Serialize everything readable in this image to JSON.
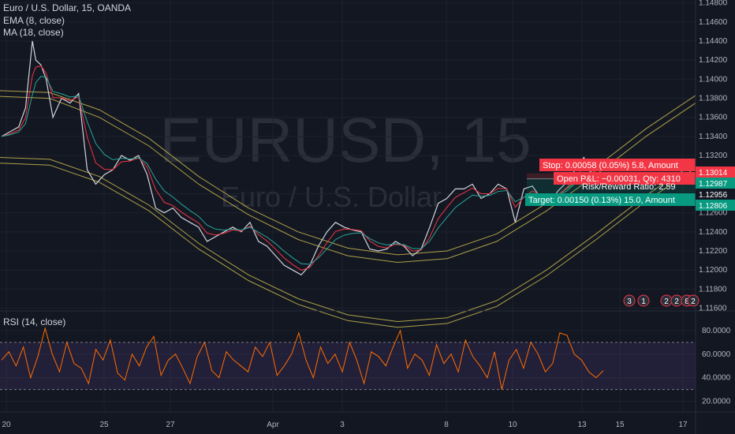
{
  "legend": {
    "symbol": "Euro / U.S. Dollar, 15, OANDA",
    "ema": "EMA (8, close)",
    "ma": "MA (18, close)",
    "rsi": "RSI (14, close)"
  },
  "watermark": {
    "symbol": "EURUSD, 15",
    "name": "Euro / U.S. Dollar"
  },
  "position": {
    "stop_text": "Stop: 0.00058 (0.05%) 5.8, Amount",
    "pnl_text": "Open P&L: −0.00031, Qty: 4310",
    "rr_text": "Risk/Reward Ratio: 2.59",
    "target_text": "Target: 0.00150 (0.13%) 15.0, Amount"
  },
  "price_tags": {
    "stop": "1.13014",
    "current": "1.12987",
    "entry": "1.12956",
    "target": "1.12806"
  },
  "events": [
    "3",
    "1",
    "2",
    "2",
    "8",
    "2"
  ],
  "colors": {
    "bg": "#131722",
    "price": "#d1d4dc",
    "ema": "#f23645",
    "ma": "#26a69a",
    "band": "#c9b94d",
    "rsi": "#ff6d00",
    "stop": "#f23645",
    "target": "#089981"
  },
  "chart_data": [
    {
      "type": "line",
      "title": "Euro / U.S. Dollar, 15, OANDA",
      "x_ticks": [
        "20",
        "25",
        "27",
        "Apr",
        "3",
        "8",
        "10",
        "13",
        "15",
        "17"
      ],
      "y_ticks": [
        "1.14800",
        "1.14600",
        "1.14400",
        "1.14200",
        "1.14000",
        "1.13800",
        "1.13600",
        "1.13400",
        "1.13200",
        "1.12800",
        "1.12600",
        "1.12400",
        "1.12200",
        "1.12000",
        "1.11800",
        "1.11600"
      ],
      "ylim": [
        1.1158,
        1.1483
      ],
      "series": [
        {
          "name": "Euro / U.S. Dollar",
          "x": [
            0,
            0.5,
            1,
            1.4,
            1.8,
            2,
            2.3,
            2.6,
            3,
            3.5,
            4,
            4.5,
            5,
            5.5,
            6,
            6.5,
            7,
            7.5,
            8,
            8.5,
            9,
            9.5,
            10,
            10.5,
            11,
            11.5,
            12,
            12.5,
            13,
            13.5,
            14,
            14.5,
            15,
            15.5,
            16,
            16.5,
            17,
            17.5,
            18,
            18.5,
            19,
            19.5,
            20,
            20.5,
            21,
            21.5,
            22,
            22.5,
            23,
            23.5,
            24,
            24.5,
            25,
            25.5,
            26,
            26.5,
            27,
            27.5,
            28,
            28.5,
            29,
            29.5,
            30,
            30.5,
            31,
            31.5,
            32,
            32.5,
            33,
            33.5,
            34,
            34.5,
            35
          ],
          "values": [
            1.134,
            1.1345,
            1.135,
            1.137,
            1.144,
            1.142,
            1.1415,
            1.14,
            1.136,
            1.138,
            1.1375,
            1.1385,
            1.1305,
            1.129,
            1.13,
            1.1305,
            1.132,
            1.1315,
            1.132,
            1.13,
            1.1265,
            1.126,
            1.1265,
            1.1255,
            1.125,
            1.1245,
            1.123,
            1.1235,
            1.124,
            1.1245,
            1.124,
            1.125,
            1.123,
            1.1225,
            1.1215,
            1.1205,
            1.12,
            1.1195,
            1.1205,
            1.1225,
            1.124,
            1.125,
            1.1245,
            1.1242,
            1.124,
            1.1222,
            1.122,
            1.1222,
            1.123,
            1.1225,
            1.1215,
            1.1222,
            1.1245,
            1.127,
            1.1275,
            1.1285,
            1.1285,
            1.129,
            1.1275,
            1.128,
            1.129,
            1.1285,
            1.125,
            1.1285,
            1.1288,
            1.1275,
            1.127,
            1.1283,
            1.1292,
            1.1305,
            1.1318,
            1.13,
            1.1298
          ]
        }
      ],
      "bands": [
        {
          "values": [
            1.1382,
            1.138,
            1.136,
            1.133,
            1.129,
            1.1258,
            1.1232,
            1.1215,
            1.1208,
            1.1212,
            1.123,
            1.1262,
            1.13,
            1.134,
            1.1375
          ]
        },
        {
          "values": [
            1.1388,
            1.1386,
            1.1368,
            1.1338,
            1.1298,
            1.1265,
            1.124,
            1.1223,
            1.1216,
            1.122,
            1.1238,
            1.127,
            1.1308,
            1.1348,
            1.1383
          ]
        },
        {
          "values": [
            1.1318,
            1.1316,
            1.1298,
            1.1268,
            1.1228,
            1.1195,
            1.117,
            1.1153,
            1.1146,
            1.115,
            1.1168,
            1.12,
            1.1238,
            1.1278,
            1.1313
          ]
        },
        {
          "values": [
            1.1312,
            1.131,
            1.1292,
            1.1262,
            1.1222,
            1.1189,
            1.1164,
            1.1147,
            1.114,
            1.1144,
            1.1162,
            1.1194,
            1.1232,
            1.1272,
            1.1307
          ]
        }
      ],
      "position_levels": {
        "stop": 1.13014,
        "current": 1.12987,
        "entry": 1.12956,
        "target": 1.12806
      }
    },
    {
      "type": "line",
      "title": "RSI (14, close)",
      "y_ticks": [
        "80.0000",
        "60.0000",
        "40.0000",
        "20.0000"
      ],
      "ylim": [
        11,
        96
      ],
      "levels": [
        70,
        30
      ],
      "series": [
        {
          "name": "RSI (14, close)",
          "values": [
            55,
            62,
            50,
            66,
            40,
            58,
            82,
            60,
            45,
            70,
            52,
            48,
            35,
            64,
            55,
            72,
            44,
            38,
            60,
            50,
            66,
            75,
            42,
            55,
            60,
            48,
            35,
            58,
            70,
            46,
            40,
            62,
            55,
            50,
            45,
            66,
            58,
            70,
            42,
            50,
            60,
            78,
            55,
            40,
            66,
            52,
            60,
            45,
            70,
            55,
            35,
            62,
            58,
            50,
            66,
            80,
            48,
            60,
            55,
            42,
            68,
            52,
            60,
            45,
            72,
            58,
            50,
            40,
            62,
            30,
            55,
            64,
            48,
            70,
            60,
            45,
            52,
            78,
            76,
            60,
            55,
            45,
            40,
            46
          ]
        }
      ]
    }
  ]
}
